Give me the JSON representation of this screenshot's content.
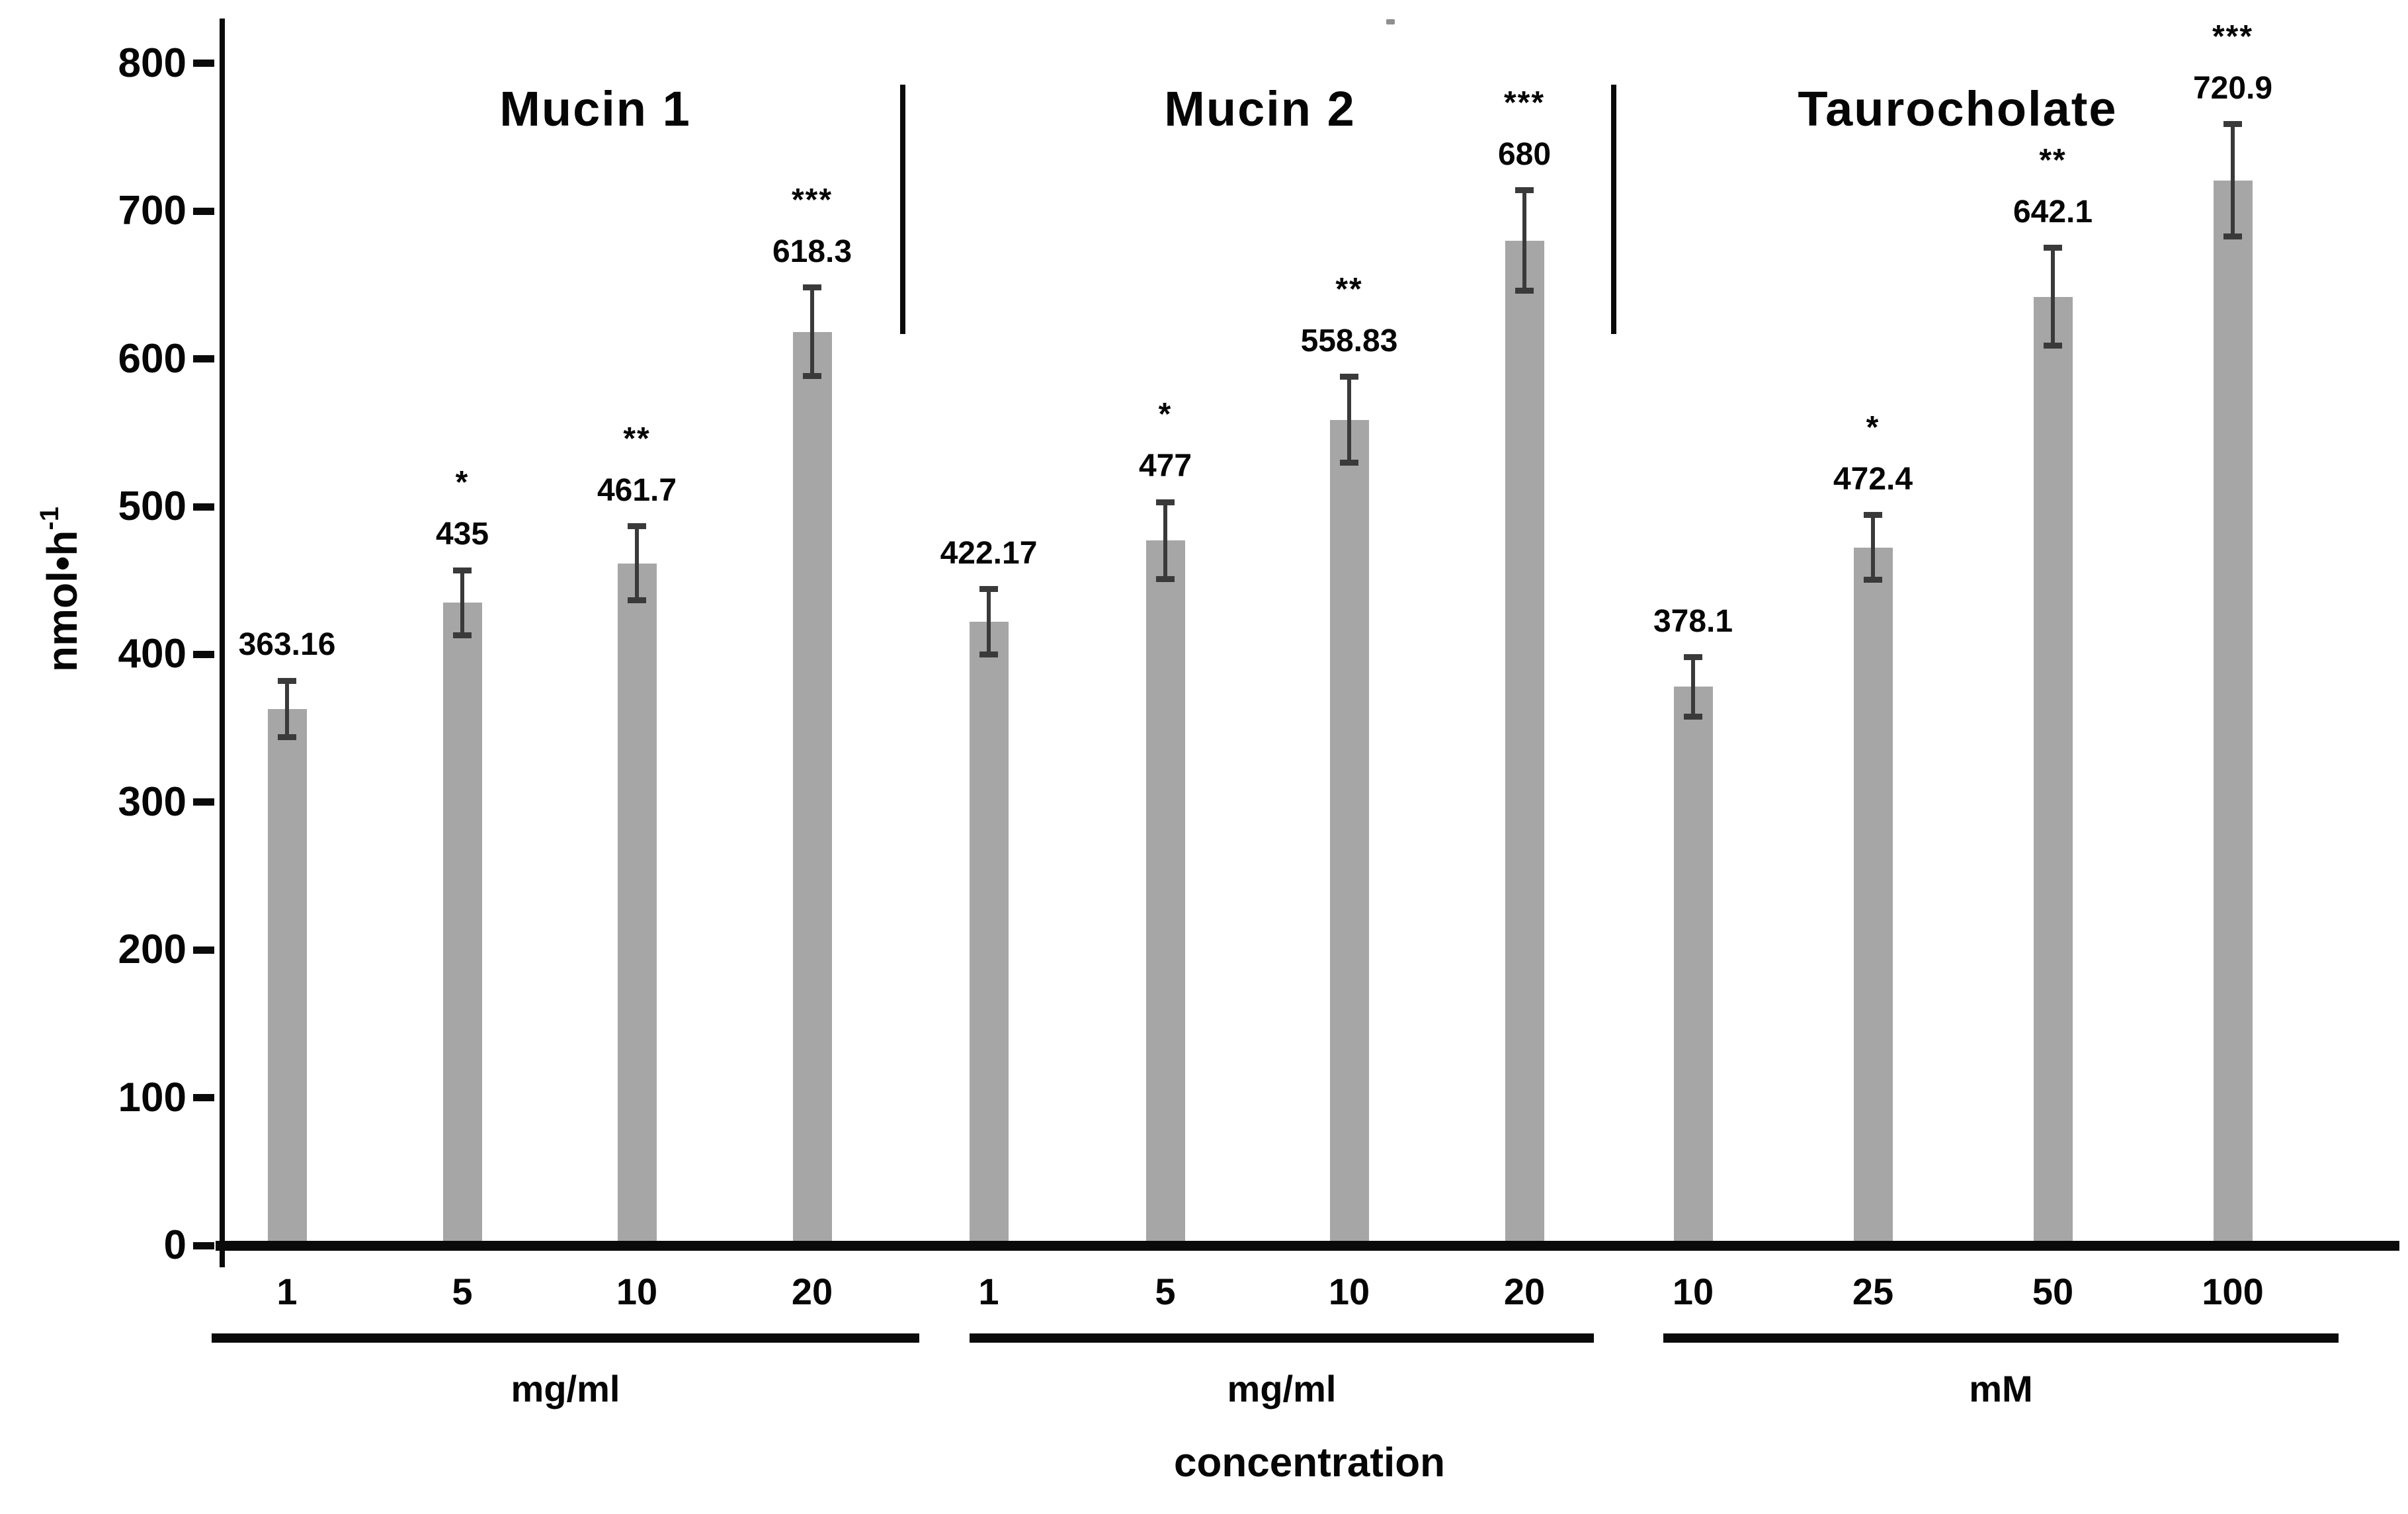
{
  "chart_data": {
    "type": "bar",
    "title": "",
    "xlabel": "concentration",
    "ylabel_base": "nmol•h",
    "ylabel_sup": "-1",
    "ylim": [
      0,
      830
    ],
    "yticks": [
      0,
      100,
      200,
      300,
      400,
      500,
      600,
      700,
      800
    ],
    "grid": false,
    "legend": "none",
    "bar_color": "#a6a6a6",
    "error_bar_color": "#3a3a3a",
    "axis_color": "#0a0a0a",
    "groups": [
      {
        "title": "Mucin 1",
        "unit": "mg/ml",
        "categories": [
          "1",
          "5",
          "10",
          "20"
        ],
        "values": [
          363.16,
          435,
          461.7,
          618.3
        ],
        "labels": [
          "363.16",
          "435",
          "461.7",
          "618.3"
        ],
        "errors": [
          19,
          22,
          25,
          30
        ],
        "significance": [
          "",
          "*",
          "**",
          "***"
        ]
      },
      {
        "title": "Mucin 2",
        "unit": "mg/ml",
        "categories": [
          "1",
          "5",
          "10",
          "20"
        ],
        "values": [
          422.17,
          477,
          558.83,
          680
        ],
        "labels": [
          "422.17",
          "477",
          "558.83",
          "680"
        ],
        "errors": [
          22,
          26,
          29,
          34
        ],
        "significance": [
          "",
          "*",
          "**",
          "***"
        ]
      },
      {
        "title": "Taurocholate",
        "unit": "mM",
        "categories": [
          "10",
          "25",
          "50",
          "100"
        ],
        "values": [
          378.1,
          472.4,
          642.1,
          720.9
        ],
        "labels": [
          "378.1",
          "472.4",
          "642.1",
          "720.9"
        ],
        "errors": [
          20,
          22,
          33,
          38
        ],
        "significance": [
          "",
          "*",
          "**",
          "***"
        ]
      }
    ]
  }
}
